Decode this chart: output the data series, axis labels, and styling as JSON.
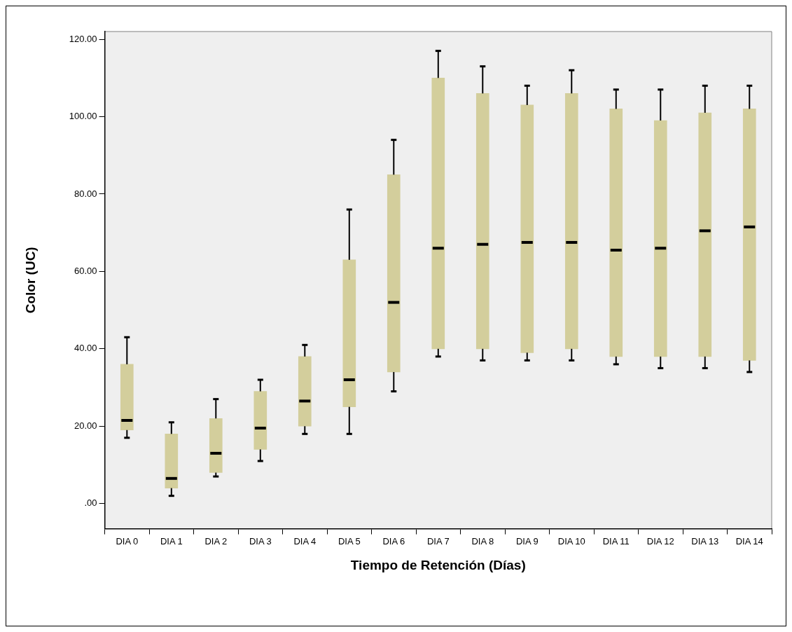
{
  "chart_data": {
    "type": "box",
    "xlabel": "Tiempo de Retención (Días)",
    "ylabel": "Color (UC)",
    "categories": [
      "DIA 0",
      "DIA 1",
      "DIA 2",
      "DIA 3",
      "DIA 4",
      "DIA 5",
      "DIA 6",
      "DIA 7",
      "DIA 8",
      "DIA 9",
      "DIA 10",
      "DIA 11",
      "DIA 12",
      "DIA 13",
      "DIA 14"
    ],
    "color": "#d3ce9c",
    "ylim": [
      -6.5,
      122
    ],
    "yticks": [
      {
        "value": 0,
        "label": ".00"
      },
      {
        "value": 20,
        "label": "20.00"
      },
      {
        "value": 40,
        "label": "40.00"
      },
      {
        "value": 60,
        "label": "60.00"
      },
      {
        "value": 80,
        "label": "80.00"
      },
      {
        "value": 100,
        "label": "100.00"
      },
      {
        "value": 120,
        "label": "120.00"
      }
    ],
    "grid": false,
    "legend": false,
    "boxes": [
      {
        "low": 17,
        "q1": 19,
        "median": 21.5,
        "q3": 36,
        "high": 43
      },
      {
        "low": 2,
        "q1": 4,
        "median": 6.5,
        "q3": 18,
        "high": 21
      },
      {
        "low": 7,
        "q1": 8,
        "median": 13,
        "q3": 22,
        "high": 27
      },
      {
        "low": 11,
        "q1": 14,
        "median": 19.5,
        "q3": 29,
        "high": 32
      },
      {
        "low": 18,
        "q1": 20,
        "median": 26.5,
        "q3": 38,
        "high": 41
      },
      {
        "low": 18,
        "q1": 25,
        "median": 32,
        "q3": 63,
        "high": 76
      },
      {
        "low": 29,
        "q1": 34,
        "median": 52,
        "q3": 85,
        "high": 94
      },
      {
        "low": 38,
        "q1": 40,
        "median": 66,
        "q3": 110,
        "high": 117
      },
      {
        "low": 37,
        "q1": 40,
        "median": 67,
        "q3": 106,
        "high": 113
      },
      {
        "low": 37,
        "q1": 39,
        "median": 67.5,
        "q3": 103,
        "high": 108
      },
      {
        "low": 37,
        "q1": 40,
        "median": 67.5,
        "q3": 106,
        "high": 112
      },
      {
        "low": 36,
        "q1": 38,
        "median": 65.5,
        "q3": 102,
        "high": 107
      },
      {
        "low": 35,
        "q1": 38,
        "median": 66,
        "q3": 99,
        "high": 107
      },
      {
        "low": 35,
        "q1": 38,
        "median": 70.5,
        "q3": 101,
        "high": 108
      },
      {
        "low": 34,
        "q1": 37,
        "median": 71.5,
        "q3": 102,
        "high": 108
      }
    ]
  }
}
